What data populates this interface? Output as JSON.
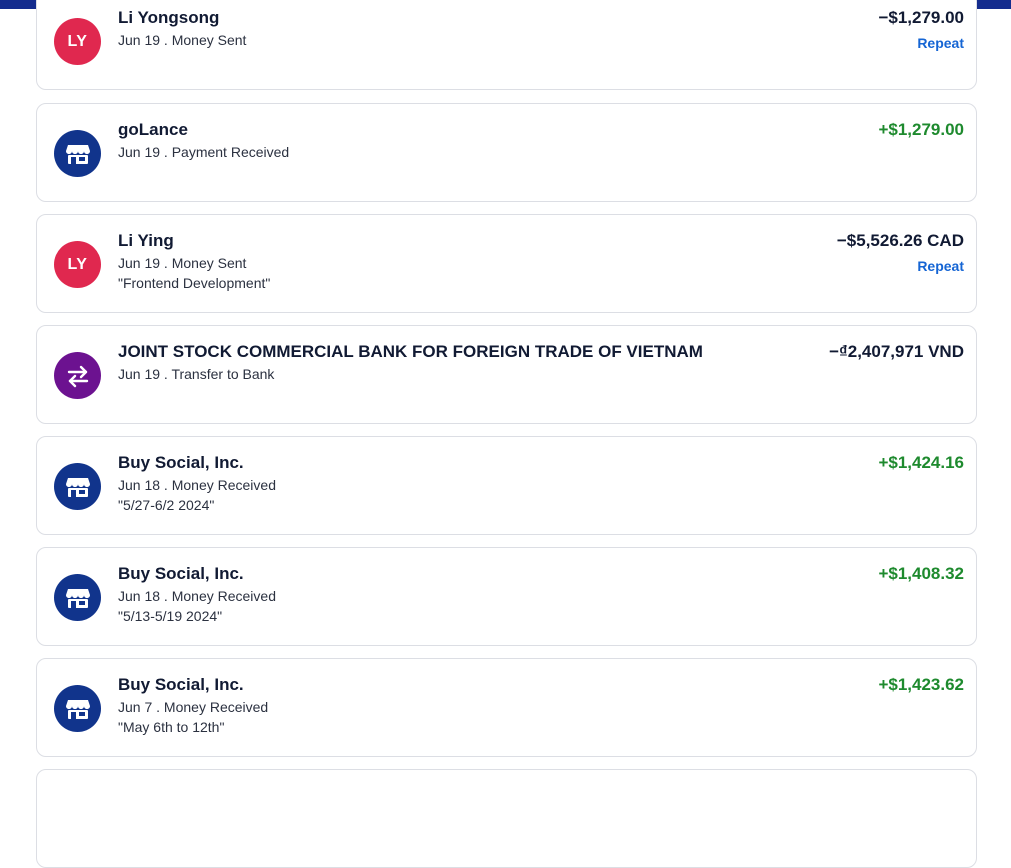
{
  "colors": {
    "header_bar": "#142c8e",
    "positive_amount": "#1e8a2e",
    "negative_amount": "#111a33",
    "link": "#1565d4",
    "avatar_ly": "#e0284f",
    "avatar_merchant": "#11348c",
    "avatar_transfer": "#6c1290"
  },
  "transactions": [
    {
      "avatar_text": "LY",
      "avatar_icon": "initials",
      "name": "Li Yongsong",
      "sub": "Jun 19 . Money Sent",
      "note": "",
      "amount": "−$1,279.00",
      "repeat": "Repeat"
    },
    {
      "avatar_text": "",
      "avatar_icon": "storefront-icon",
      "name": "goLance",
      "sub": "Jun 19 . Payment Received",
      "note": "",
      "amount": "+$1,279.00",
      "repeat": ""
    },
    {
      "avatar_text": "LY",
      "avatar_icon": "initials",
      "name": "Li Ying",
      "sub": "Jun 19 . Money Sent",
      "note": "\"Frontend Development\"",
      "amount": "−$5,526.26 CAD",
      "repeat": "Repeat"
    },
    {
      "avatar_text": "",
      "avatar_icon": "transfer-arrows-icon",
      "name": "JOINT STOCK COMMERCIAL BANK FOR FOREIGN TRADE OF VIETNAM",
      "sub": "Jun 19 . Transfer to Bank",
      "note": "",
      "amount": "−₫2,407,971 VND",
      "repeat": ""
    },
    {
      "avatar_text": "",
      "avatar_icon": "storefront-icon",
      "name": "Buy Social, Inc.",
      "sub": "Jun 18 . Money Received",
      "note": "\"5/27-6/2 2024\"",
      "amount": "+$1,424.16",
      "repeat": ""
    },
    {
      "avatar_text": "",
      "avatar_icon": "storefront-icon",
      "name": "Buy Social, Inc.",
      "sub": "Jun 18 . Money Received",
      "note": "\"5/13-5/19 2024\"",
      "amount": "+$1,408.32",
      "repeat": ""
    },
    {
      "avatar_text": "",
      "avatar_icon": "storefront-icon",
      "name": "Buy Social, Inc.",
      "sub": "Jun 7 . Money Received",
      "note": "\"May 6th to 12th\"",
      "amount": "+$1,423.62",
      "repeat": ""
    }
  ]
}
